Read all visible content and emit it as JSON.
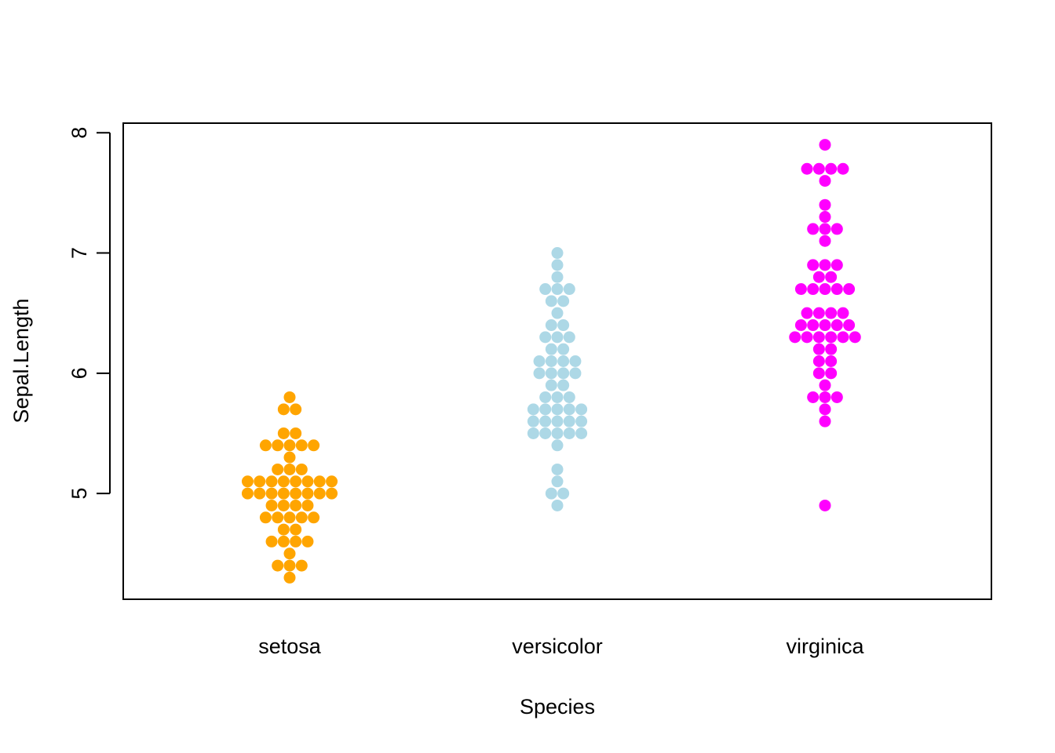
{
  "chart_data": {
    "type": "scatter",
    "subtype": "beeswarm",
    "title": "",
    "xlabel": "Species",
    "ylabel": "Sepal.Length",
    "categories": [
      "setosa",
      "versicolor",
      "virginica"
    ],
    "ylim": [
      4.12,
      8.08
    ],
    "yticks": [
      5,
      6,
      7,
      8
    ],
    "grid": false,
    "legend": "none",
    "series": [
      {
        "category": "setosa",
        "color": "#FFA500",
        "values": [
          5.1,
          4.9,
          4.7,
          4.6,
          5.0,
          5.4,
          4.6,
          5.0,
          4.4,
          4.9,
          5.4,
          4.8,
          4.8,
          4.3,
          5.8,
          5.7,
          5.4,
          5.1,
          5.7,
          5.1,
          5.4,
          5.1,
          4.6,
          5.1,
          4.8,
          5.0,
          5.0,
          5.2,
          5.2,
          4.7,
          4.8,
          5.4,
          5.2,
          5.5,
          4.9,
          5.0,
          5.5,
          4.9,
          4.4,
          5.1,
          5.0,
          4.5,
          4.4,
          5.0,
          5.1,
          4.8,
          5.1,
          4.6,
          5.3,
          5.0
        ]
      },
      {
        "category": "versicolor",
        "color": "#ADD8E6",
        "values": [
          7.0,
          6.4,
          6.9,
          5.5,
          6.5,
          5.7,
          6.3,
          4.9,
          6.6,
          5.2,
          5.0,
          5.9,
          6.0,
          6.1,
          5.6,
          6.7,
          5.6,
          5.8,
          6.2,
          5.6,
          5.9,
          6.1,
          6.3,
          6.1,
          6.4,
          6.6,
          6.8,
          6.7,
          6.0,
          5.7,
          5.5,
          5.5,
          5.8,
          6.0,
          5.4,
          6.0,
          6.7,
          6.3,
          5.6,
          5.5,
          5.5,
          6.1,
          5.8,
          5.0,
          5.6,
          5.7,
          5.7,
          6.2,
          5.1,
          5.7
        ]
      },
      {
        "category": "virginica",
        "color": "#FF00FF",
        "values": [
          6.3,
          5.8,
          7.1,
          6.3,
          6.5,
          7.6,
          4.9,
          7.3,
          6.7,
          7.2,
          6.5,
          6.4,
          6.8,
          5.7,
          5.8,
          6.4,
          6.5,
          7.7,
          7.7,
          6.0,
          6.9,
          5.6,
          7.7,
          6.3,
          6.7,
          7.2,
          6.2,
          6.1,
          6.4,
          7.2,
          7.4,
          7.9,
          6.4,
          6.3,
          6.1,
          7.7,
          6.3,
          6.4,
          6.0,
          6.9,
          6.7,
          6.9,
          5.8,
          6.8,
          6.7,
          6.7,
          6.3,
          6.5,
          6.2,
          5.9
        ]
      }
    ]
  }
}
